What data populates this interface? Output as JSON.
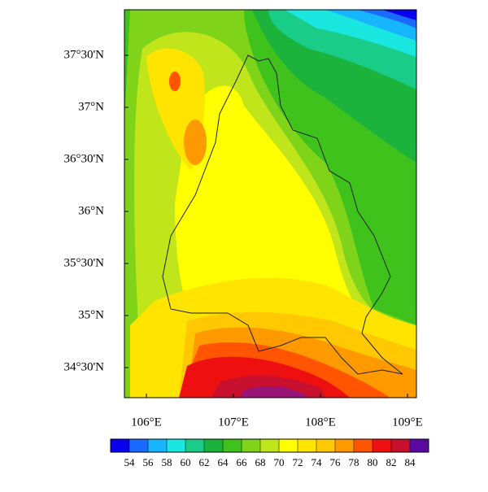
{
  "map": {
    "xlim": [
      105.748,
      109.103
    ],
    "ylim": [
      34.211,
      37.9375
    ],
    "xticks": [
      {
        "value": 106,
        "label": "106°E"
      },
      {
        "value": 107,
        "label": "107°E"
      },
      {
        "value": 108,
        "label": "108°E"
      },
      {
        "value": 109,
        "label": "109°E"
      }
    ],
    "yticks": [
      {
        "value": 34.5,
        "label": "34°30'N"
      },
      {
        "value": 35,
        "label": "35°N"
      },
      {
        "value": 35.5,
        "label": "35°30'N"
      },
      {
        "value": 36,
        "label": "36°N"
      },
      {
        "value": 36.5,
        "label": "36°30'N"
      },
      {
        "value": 37,
        "label": "37°N"
      },
      {
        "value": 37.5,
        "label": "37°30'N"
      }
    ],
    "colorbar": {
      "levels": [
        54,
        56,
        58,
        60,
        62,
        64,
        66,
        68,
        70,
        72,
        74,
        76,
        78,
        80,
        82,
        84
      ],
      "colors": [
        "#0a00f0",
        "#1a6aff",
        "#18b5ff",
        "#1ae8e0",
        "#19cc88",
        "#1bb33c",
        "#3fc21b",
        "#7fd41a",
        "#c0e51a",
        "#ffff00",
        "#ffe400",
        "#ffc800",
        "#ff9900",
        "#ff5500",
        "#ee1010",
        "#c8102e",
        "#5a0aa0"
      ]
    }
  }
}
